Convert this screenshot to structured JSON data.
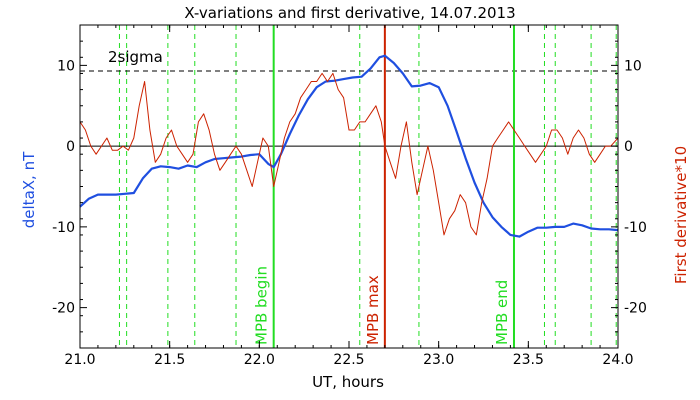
{
  "chart_data": {
    "type": "line",
    "title": "X-variations and first derivative, 14.07.2013",
    "xlabel": "UT, hours",
    "ylabel_left": "deltaX, nT",
    "ylabel_right": "First derivative*10",
    "xlim": [
      21.0,
      24.0
    ],
    "ylim": [
      -25,
      15
    ],
    "x_ticks": [
      "21.0",
      "21.5",
      "22.0",
      "22.5",
      "23.0",
      "23.5",
      "24.0"
    ],
    "x_tick_values": [
      21.0,
      21.5,
      22.0,
      22.5,
      23.0,
      23.5,
      24.0
    ],
    "y_ticks_left": [
      "10",
      "0",
      "-10",
      "-20"
    ],
    "y_ticks_right": [
      "10",
      "0",
      "-10",
      "-20"
    ],
    "y_tick_values": [
      10,
      0,
      -10,
      -20
    ],
    "threshold": {
      "label": "2sigma",
      "value": 9.3
    },
    "zero_line": 0,
    "colors": {
      "deltaX": "#1f4fe0",
      "derivative": "#cc2200",
      "green": "#22dd22",
      "red_marker": "#cc2200",
      "axis": "#000000"
    },
    "event_lines": [
      {
        "x": 22.08,
        "label": "MPB begin",
        "color": "#22dd22"
      },
      {
        "x": 22.7,
        "label": "MPB max",
        "color": "#cc2200"
      },
      {
        "x": 23.42,
        "label": "MPB end",
        "color": "#22dd22"
      }
    ],
    "dashed_lines_x": [
      21.22,
      21.26,
      21.49,
      21.64,
      21.87,
      22.56,
      22.89,
      23.59,
      23.65,
      23.85,
      23.99
    ],
    "series": [
      {
        "name": "deltaX, nT",
        "axis": "left",
        "x": [
          21.0,
          21.05,
          21.1,
          21.15,
          21.2,
          21.25,
          21.3,
          21.35,
          21.4,
          21.45,
          21.5,
          21.55,
          21.6,
          21.65,
          21.7,
          21.75,
          21.8,
          21.85,
          21.9,
          21.95,
          22.0,
          22.05,
          22.08,
          22.12,
          22.17,
          22.22,
          22.27,
          22.32,
          22.37,
          22.42,
          22.47,
          22.52,
          22.57,
          22.62,
          22.67,
          22.7,
          22.75,
          22.8,
          22.85,
          22.9,
          22.95,
          23.0,
          23.05,
          23.1,
          23.15,
          23.2,
          23.25,
          23.3,
          23.35,
          23.4,
          23.45,
          23.5,
          23.55,
          23.6,
          23.65,
          23.7,
          23.75,
          23.8,
          23.85,
          23.9,
          23.95,
          24.0
        ],
        "y": [
          -7.5,
          -6.5,
          -6.0,
          -6.0,
          -6.0,
          -5.9,
          -5.8,
          -4.0,
          -2.8,
          -2.5,
          -2.6,
          -2.8,
          -2.4,
          -2.6,
          -2.0,
          -1.6,
          -1.5,
          -1.4,
          -1.3,
          -1.1,
          -1.0,
          -2.2,
          -2.6,
          -1.0,
          1.5,
          3.8,
          5.8,
          7.3,
          8.0,
          8.1,
          8.3,
          8.5,
          8.6,
          9.6,
          11.0,
          11.2,
          10.3,
          9.0,
          7.4,
          7.5,
          7.8,
          7.3,
          5.0,
          1.8,
          -1.5,
          -4.5,
          -7.0,
          -8.8,
          -10.0,
          -11.0,
          -11.2,
          -10.6,
          -10.1,
          -10.1,
          -10.0,
          -10.0,
          -9.6,
          -9.8,
          -10.2,
          -10.3,
          -10.3,
          -10.4
        ]
      },
      {
        "name": "First derivative*10",
        "axis": "right",
        "x": [
          21.0,
          21.03,
          21.06,
          21.09,
          21.12,
          21.15,
          21.18,
          21.21,
          21.24,
          21.27,
          21.3,
          21.33,
          21.36,
          21.39,
          21.42,
          21.45,
          21.48,
          21.51,
          21.54,
          21.57,
          21.6,
          21.63,
          21.66,
          21.69,
          21.72,
          21.75,
          21.78,
          21.81,
          21.84,
          21.87,
          21.9,
          21.93,
          21.96,
          21.99,
          22.02,
          22.05,
          22.08,
          22.11,
          22.14,
          22.17,
          22.2,
          22.23,
          22.26,
          22.29,
          22.32,
          22.35,
          22.38,
          22.41,
          22.44,
          22.47,
          22.5,
          22.53,
          22.56,
          22.59,
          22.62,
          22.65,
          22.68,
          22.7,
          22.73,
          22.76,
          22.79,
          22.82,
          22.85,
          22.88,
          22.91,
          22.94,
          22.97,
          23.0,
          23.03,
          23.06,
          23.09,
          23.12,
          23.15,
          23.18,
          23.21,
          23.24,
          23.27,
          23.3,
          23.33,
          23.36,
          23.39,
          23.42,
          23.45,
          23.48,
          23.51,
          23.54,
          23.57,
          23.6,
          23.63,
          23.66,
          23.69,
          23.72,
          23.75,
          23.78,
          23.81,
          23.84,
          23.87,
          23.9,
          23.93,
          23.96,
          24.0
        ],
        "y": [
          3,
          2,
          0,
          -1,
          0,
          1,
          -0.5,
          -0.5,
          0,
          -0.5,
          1,
          5,
          8,
          2,
          -2,
          -1,
          1,
          2,
          0,
          -1,
          -2,
          -1,
          3,
          4,
          2,
          -1,
          -3,
          -2,
          -1,
          0,
          -1,
          -3,
          -5,
          -2,
          1,
          0,
          -5,
          -2,
          1,
          3,
          4,
          6,
          7,
          8,
          8,
          9,
          8,
          9,
          7,
          6,
          2,
          2,
          3,
          3,
          4,
          5,
          3,
          0,
          -2,
          -4,
          0,
          3,
          -2,
          -6,
          -3,
          0,
          -3,
          -7,
          -11,
          -9,
          -8,
          -6,
          -7,
          -10,
          -11,
          -7,
          -4,
          0,
          1,
          2,
          3,
          2,
          1,
          0,
          -1,
          -2,
          -1,
          0,
          2,
          2,
          1,
          -1,
          1,
          2,
          1,
          -1,
          -2,
          -1,
          0,
          0,
          1
        ]
      }
    ]
  }
}
